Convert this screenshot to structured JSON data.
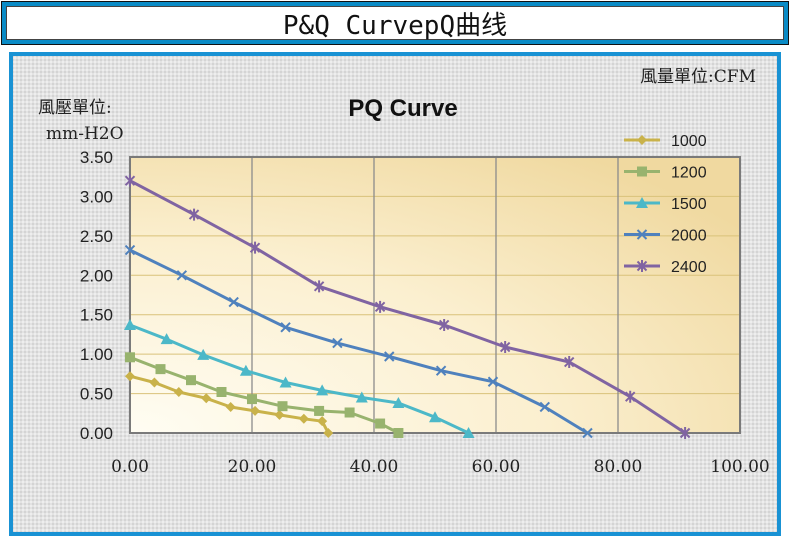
{
  "header": {
    "title": "P&Q CurvepQ曲线"
  },
  "chart_data": {
    "type": "line",
    "title": "PQ Curve",
    "ylabel_line1": "風壓單位:",
    "ylabel_line2": "mm-H2O",
    "xlabel": "風量單位:CFM",
    "xlim": [
      0,
      100
    ],
    "ylim": [
      0,
      3.5
    ],
    "x_ticks": [
      "0.00",
      "20.00",
      "40.00",
      "60.00",
      "80.00",
      "100.00"
    ],
    "y_ticks": [
      "0.00",
      "0.50",
      "1.00",
      "1.50",
      "2.00",
      "2.50",
      "3.00",
      "3.50"
    ],
    "grid": "vertical and horizontal",
    "legend_position": "right",
    "series": [
      {
        "name": "1000",
        "color": "#c9b24a",
        "marker": "diamond",
        "x": [
          0,
          4,
          8,
          12.5,
          16.5,
          20.5,
          24.5,
          28.5,
          31.5,
          32.5
        ],
        "y": [
          0.72,
          0.64,
          0.52,
          0.44,
          0.33,
          0.28,
          0.23,
          0.18,
          0.15,
          0.0
        ]
      },
      {
        "name": "1200",
        "color": "#98b36e",
        "marker": "square",
        "x": [
          0,
          5,
          10,
          15,
          20,
          25,
          31,
          36,
          41,
          44
        ],
        "y": [
          0.96,
          0.81,
          0.67,
          0.52,
          0.43,
          0.34,
          0.28,
          0.26,
          0.12,
          0.0
        ]
      },
      {
        "name": "1500",
        "color": "#4cb8c8",
        "marker": "triangle",
        "x": [
          0,
          6,
          12,
          19,
          25.5,
          31.5,
          38,
          44,
          50,
          55.5
        ],
        "y": [
          1.37,
          1.19,
          0.99,
          0.79,
          0.64,
          0.54,
          0.45,
          0.38,
          0.2,
          0.0
        ]
      },
      {
        "name": "2000",
        "color": "#4f81bd",
        "marker": "x",
        "x": [
          0,
          8.5,
          17,
          25.5,
          34,
          42.5,
          51,
          59.5,
          68,
          75
        ],
        "y": [
          2.32,
          2.0,
          1.66,
          1.34,
          1.14,
          0.97,
          0.79,
          0.65,
          0.33,
          0.0
        ]
      },
      {
        "name": "2400",
        "color": "#8064a2",
        "marker": "star",
        "x": [
          0,
          10.5,
          20.5,
          31,
          41,
          51.5,
          61.5,
          72,
          82,
          91
        ],
        "y": [
          3.2,
          2.77,
          2.35,
          1.86,
          1.6,
          1.37,
          1.09,
          0.9,
          0.46,
          0.0
        ]
      }
    ]
  }
}
